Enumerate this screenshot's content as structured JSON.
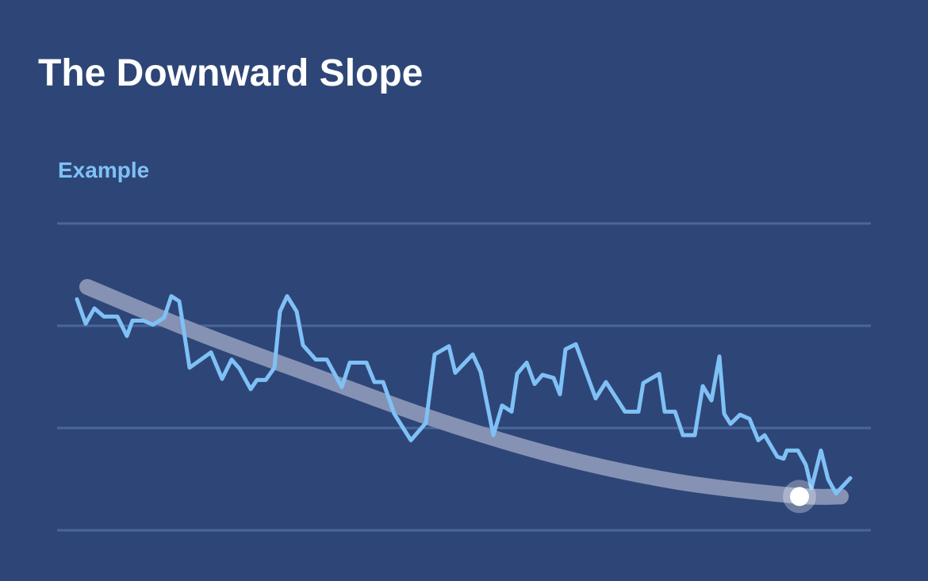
{
  "title": "The Downward Slope",
  "chart_data": {
    "type": "line",
    "subtitle": "Example",
    "xlim": [
      0,
      975
    ],
    "ylim": [
      0,
      3
    ],
    "yticks": [
      0,
      1,
      2,
      3
    ],
    "grid": true,
    "series": [
      {
        "color": "#7fc1f6",
        "x": [
          0,
          11,
          22,
          34,
          51,
          63,
          70,
          84,
          96,
          110,
          119,
          129,
          142,
          169,
          183,
          195,
          205,
          219,
          227,
          238,
          249,
          256,
          265,
          277,
          285,
          301,
          315,
          334,
          344,
          365,
          375,
          386,
          400,
          421,
          440,
          451,
          469,
          477,
          499,
          509,
          525,
          536,
          548,
          555,
          567,
          577,
          587,
          601,
          609,
          616,
          629,
          654,
          667,
          691,
          708,
          714,
          734,
          741,
          754,
          764,
          779,
          789,
          800,
          810,
          816,
          824,
          836,
          848,
          859,
          867,
          883,
          891,
          895,
          909,
          919,
          926,
          938,
          947,
          957,
          975
        ],
        "values": [
          2.26,
          2.02,
          2.17,
          2.09,
          2.09,
          1.9,
          2.05,
          2.05,
          2.01,
          2.08,
          2.29,
          2.24,
          1.59,
          1.74,
          1.48,
          1.67,
          1.58,
          1.38,
          1.47,
          1.47,
          1.59,
          2.14,
          2.29,
          2.14,
          1.81,
          1.67,
          1.67,
          1.4,
          1.64,
          1.64,
          1.45,
          1.45,
          1.14,
          0.88,
          1.05,
          1.72,
          1.8,
          1.54,
          1.72,
          1.55,
          0.93,
          1.22,
          1.16,
          1.53,
          1.64,
          1.43,
          1.52,
          1.49,
          1.33,
          1.77,
          1.82,
          1.29,
          1.45,
          1.16,
          1.16,
          1.44,
          1.53,
          1.16,
          1.16,
          0.93,
          0.93,
          1.41,
          1.27,
          1.7,
          1.14,
          1.04,
          1.13,
          1.09,
          0.88,
          0.93,
          0.72,
          0.7,
          0.78,
          0.78,
          0.64,
          0.41,
          0.78,
          0.5,
          0.36,
          0.51
        ]
      },
      {
        "color": "#8592b3",
        "smooth": true,
        "x": [
          13,
          153,
          303,
          453,
          603,
          753,
          903,
          963
        ],
        "values": [
          2.38,
          1.93,
          1.5,
          1.08,
          0.73,
          0.48,
          0.34,
          0.33
        ]
      }
    ],
    "marker": {
      "x": 911,
      "y": 0.33,
      "color": "#ffffff"
    }
  }
}
